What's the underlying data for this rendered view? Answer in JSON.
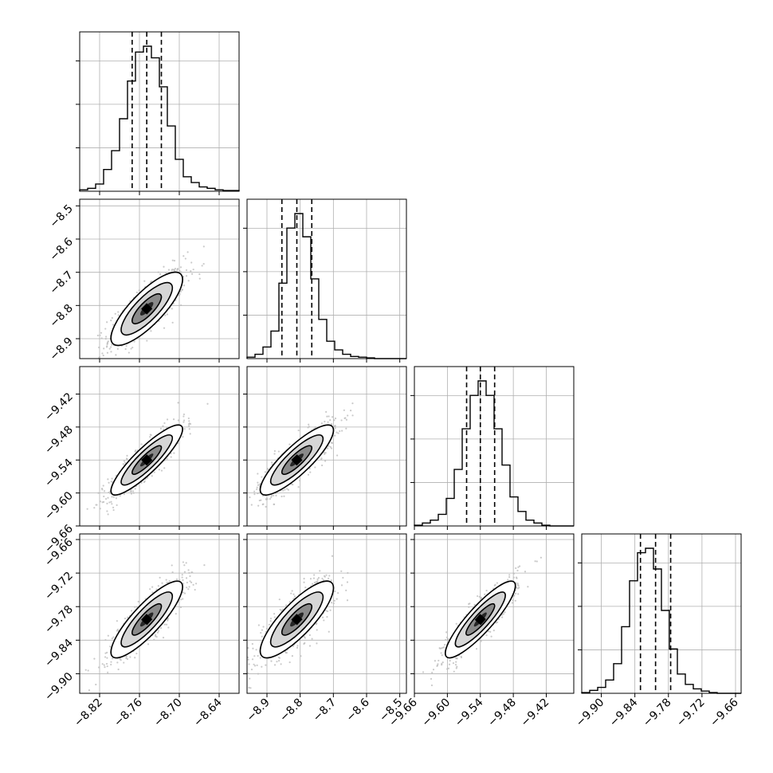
{
  "chart_data": {
    "type": "corner",
    "title": "",
    "grid": true,
    "n_params": 4,
    "colors": {
      "line": "#000000",
      "grid": "#b0b0b0",
      "scatter": "#bdbdbd",
      "density_dark": "#000000",
      "density_light": "#e8e8e8",
      "background": "#ffffff"
    },
    "params": [
      {
        "xlim": [
          -8.85,
          -8.61
        ],
        "ylim": [
          0,
          1.1
        ],
        "xticks": [
          -8.82,
          -8.76,
          -8.7,
          -8.64
        ],
        "xtick_labels": [
          "−8.82",
          "−8.76",
          "−8.70",
          "−8.64"
        ],
        "quantiles": [
          -8.771,
          -8.749,
          -8.727
        ],
        "bin_edges_range": [
          -8.85,
          -8.61
        ],
        "hist_values": [
          0.01,
          0.02,
          0.05,
          0.15,
          0.28,
          0.5,
          0.76,
          0.96,
          1.0,
          0.92,
          0.72,
          0.45,
          0.22,
          0.1,
          0.06,
          0.03,
          0.02,
          0.01,
          0.005,
          0.005
        ]
      },
      {
        "xlim": [
          -8.96,
          -8.48
        ],
        "ylim": [
          0,
          1.1
        ],
        "xticks": [
          -8.9,
          -8.8,
          -8.7,
          -8.6,
          -8.5
        ],
        "xtick_labels": [
          "−8.9",
          "−8.8",
          "−8.7",
          "−8.6",
          "−8.5"
        ],
        "yticks": [
          -8.9,
          -8.8,
          -8.7,
          -8.6,
          -8.5
        ],
        "ytick_labels": [
          "−8.9",
          "−8.8",
          "−8.7",
          "−8.6",
          "−8.5"
        ],
        "quantiles": [
          -8.855,
          -8.81,
          -8.765
        ],
        "bin_edges_range": [
          -8.96,
          -8.48
        ],
        "hist_values": [
          0.01,
          0.03,
          0.08,
          0.19,
          0.52,
          0.9,
          1.0,
          0.84,
          0.55,
          0.27,
          0.12,
          0.06,
          0.03,
          0.015,
          0.01,
          0.005,
          0.0,
          0.0,
          0.0,
          0.0
        ]
      },
      {
        "xlim": [
          -9.66,
          -9.37
        ],
        "ylim": [
          0,
          1.1
        ],
        "xticks": [
          -9.66,
          -9.6,
          -9.54,
          -9.48,
          -9.42
        ],
        "xtick_labels": [
          "−9.66",
          "−9.60",
          "−9.54",
          "−9.48",
          "−9.42"
        ],
        "yticks": [
          -9.66,
          -9.6,
          -9.54,
          -9.48,
          -9.42
        ],
        "ytick_labels": [
          "−9.66",
          "−9.60",
          "−9.54",
          "−9.48",
          "−9.42"
        ],
        "quantiles": [
          -9.565,
          -9.54,
          -9.514
        ],
        "bin_edges_range": [
          -9.66,
          -9.37
        ],
        "hist_values": [
          0.005,
          0.02,
          0.04,
          0.08,
          0.19,
          0.39,
          0.67,
          0.9,
          1.0,
          0.9,
          0.67,
          0.42,
          0.2,
          0.1,
          0.04,
          0.02,
          0.005,
          0.0,
          0.0,
          0.0
        ]
      },
      {
        "xlim": [
          -9.935,
          -9.65
        ],
        "ylim": [
          0,
          1.1
        ],
        "xticks": [
          -9.9,
          -9.84,
          -9.78,
          -9.72,
          -9.66
        ],
        "xtick_labels": [
          "−9.90",
          "−9.84",
          "−9.78",
          "−9.72",
          "−9.66"
        ],
        "yticks": [
          -9.9,
          -9.84,
          -9.78,
          -9.72,
          -9.66
        ],
        "ytick_labels": [
          "−9.90",
          "−9.84",
          "−9.78",
          "−9.72",
          "−9.66"
        ],
        "quantiles": [
          -9.83,
          -9.803,
          -9.776
        ],
        "bin_edges_range": [
          -9.935,
          -9.65
        ],
        "hist_values": [
          0.005,
          0.02,
          0.04,
          0.09,
          0.2,
          0.45,
          0.76,
          0.95,
          0.98,
          0.84,
          0.56,
          0.3,
          0.13,
          0.06,
          0.03,
          0.015,
          0.005,
          0.0,
          0.0,
          0.0
        ]
      }
    ],
    "pairs": [
      {
        "row": 1,
        "col": 0,
        "mean": [
          -8.749,
          -8.81
        ],
        "sd": [
          0.022,
          0.045
        ],
        "corr": 0.8,
        "n_points": 700
      },
      {
        "row": 2,
        "col": 0,
        "mean": [
          -8.749,
          -9.54
        ],
        "sd": [
          0.022,
          0.026
        ],
        "corr": 0.88,
        "n_points": 700
      },
      {
        "row": 2,
        "col": 1,
        "mean": [
          -8.81,
          -9.54
        ],
        "sd": [
          0.045,
          0.026
        ],
        "corr": 0.85,
        "n_points": 700
      },
      {
        "row": 3,
        "col": 0,
        "mean": [
          -8.749,
          -9.803
        ],
        "sd": [
          0.022,
          0.028
        ],
        "corr": 0.85,
        "n_points": 700
      },
      {
        "row": 3,
        "col": 1,
        "mean": [
          -8.81,
          -9.803
        ],
        "sd": [
          0.045,
          0.028
        ],
        "corr": 0.82,
        "n_points": 700
      },
      {
        "row": 3,
        "col": 2,
        "mean": [
          -9.54,
          -9.803
        ],
        "sd": [
          0.026,
          0.028
        ],
        "corr": 0.88,
        "n_points": 700
      }
    ]
  }
}
